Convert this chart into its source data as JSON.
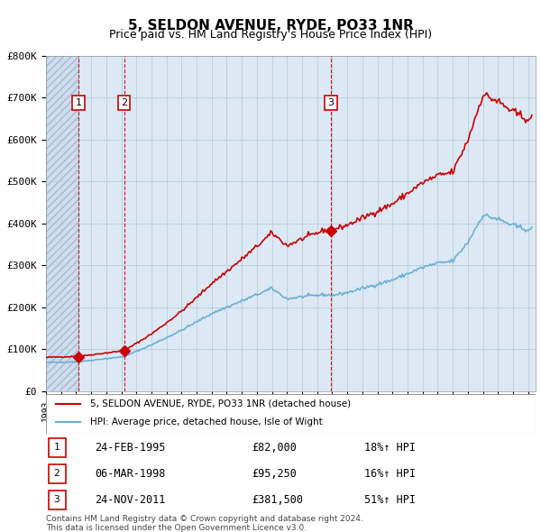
{
  "title": "5, SELDON AVENUE, RYDE, PO33 1NR",
  "subtitle": "Price paid vs. HM Land Registry's House Price Index (HPI)",
  "sale_dates": [
    "1995-02-24",
    "1998-03-06",
    "2011-11-24"
  ],
  "sale_prices": [
    82000,
    95250,
    381500
  ],
  "sale_labels": [
    "1",
    "2",
    "3"
  ],
  "sale_hpi_pct": [
    "18%↑ HPI",
    "16%↑ HPI",
    "51%↑ HPI"
  ],
  "sale_date_labels": [
    "24-FEB-1995",
    "06-MAR-1998",
    "24-NOV-2011"
  ],
  "sale_price_labels": [
    "£82,000",
    "£95,250",
    "£381,500"
  ],
  "legend_line1": "5, SELDON AVENUE, RYDE, PO33 1NR (detached house)",
  "legend_line2": "HPI: Average price, detached house, Isle of Wight",
  "footer1": "Contains HM Land Registry data © Crown copyright and database right 2024.",
  "footer2": "This data is licensed under the Open Government Licence v3.0.",
  "hpi_line_color": "#6baed6",
  "price_line_color": "#cc0000",
  "sale_marker_color": "#cc0000",
  "vline_color": "#cc0000",
  "bg_color": "#dce9f5",
  "hatch_color": "#c0d0e8",
  "grid_color": "#b0c4d8",
  "ylim": [
    0,
    800000
  ],
  "yticks": [
    0,
    100000,
    200000,
    300000,
    400000,
    500000,
    600000,
    700000,
    800000
  ],
  "ytick_labels": [
    "£0",
    "£100K",
    "£200K",
    "£300K",
    "£400K",
    "£500K",
    "£600K",
    "£700K",
    "£800K"
  ],
  "xstart": 1993.0,
  "xend": 2025.5
}
